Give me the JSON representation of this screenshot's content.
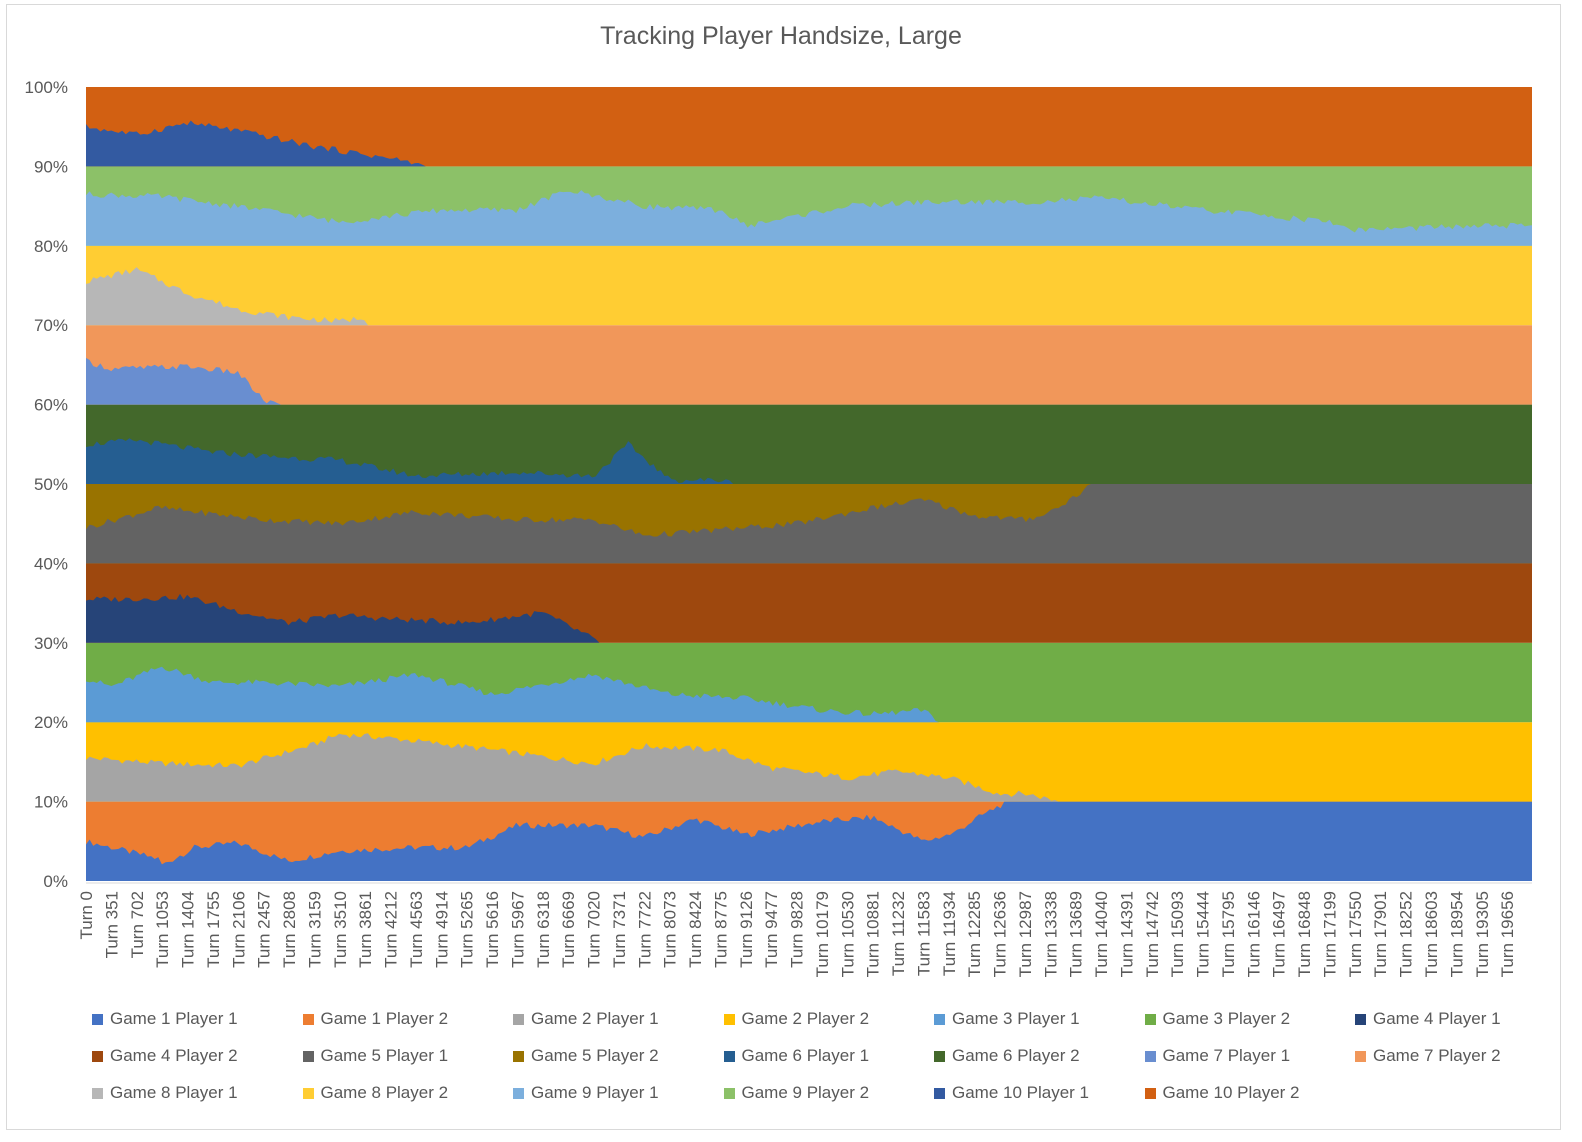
{
  "chart_data": {
    "type": "area",
    "stacked": "percent",
    "title": "Tracking Player Handsize, Large",
    "xlabel": "",
    "ylabel": "",
    "ylim": [
      0,
      100
    ],
    "y_ticks": [
      "0%",
      "10%",
      "20%",
      "30%",
      "40%",
      "50%",
      "60%",
      "70%",
      "80%",
      "90%",
      "100%"
    ],
    "x_ticks": [
      "Turn 0",
      "Turn 351",
      "Turn 702",
      "Turn 1053",
      "Turn 1404",
      "Turn 1755",
      "Turn 2106",
      "Turn 2457",
      "Turn 2808",
      "Turn 3159",
      "Turn 3510",
      "Turn 3861",
      "Turn 4212",
      "Turn 4563",
      "Turn 4914",
      "Turn 5265",
      "Turn 5616",
      "Turn 5967",
      "Turn 6318",
      "Turn 6669",
      "Turn 7020",
      "Turn 7371",
      "Turn 7722",
      "Turn 8073",
      "Turn 8424",
      "Turn 8775",
      "Turn 9126",
      "Turn 9477",
      "Turn 9828",
      "Turn 10179",
      "Turn 10530",
      "Turn 10881",
      "Turn 11232",
      "Turn 11583",
      "Turn 11934",
      "Turn 12285",
      "Turn 12636",
      "Turn 12987",
      "Turn 13338",
      "Turn 13689",
      "Turn 14040",
      "Turn 14391",
      "Turn 14742",
      "Turn 15093",
      "Turn 15444",
      "Turn 15795",
      "Turn 16146",
      "Turn 16497",
      "Turn 16848",
      "Turn 17199",
      "Turn 17550",
      "Turn 17901",
      "Turn 18252",
      "Turn 18603",
      "Turn 18954",
      "Turn 19305",
      "Turn 19656"
    ],
    "x_range": [
      0,
      20000
    ],
    "legend_position": "bottom",
    "grid": false,
    "games": [
      {
        "p1_name": "Game 1 Player 1",
        "p2_name": "Game 1 Player 2",
        "p1_color": "#4472C4",
        "p2_color": "#ED7D31",
        "turns": [
          0,
          1000,
          1053,
          1500,
          2100,
          2800,
          3500,
          4500,
          5265,
          5967,
          7020,
          7722,
          8424,
          9126,
          10179,
          10881,
          11583,
          12000,
          12300,
          12636,
          12850,
          13000,
          20000
        ],
        "p1_share": [
          50,
          28,
          20,
          42,
          48,
          25,
          38,
          42,
          42,
          70,
          70,
          55,
          78,
          58,
          75,
          80,
          50,
          60,
          78,
          95,
          100,
          100,
          100
        ]
      },
      {
        "p1_name": "Game 2 Player 1",
        "p2_name": "Game 2 Player 2",
        "p1_color": "#A5A5A5",
        "p2_color": "#FFC000",
        "turns": [
          0,
          1053,
          2106,
          3159,
          3510,
          4212,
          5616,
          7020,
          7722,
          8775,
          9477,
          10530,
          11232,
          11934,
          12636,
          13000,
          13338,
          13500,
          20000
        ],
        "p1_share": [
          55,
          48,
          45,
          72,
          85,
          80,
          65,
          48,
          70,
          65,
          42,
          30,
          38,
          30,
          10,
          10,
          3,
          0,
          0
        ]
      },
      {
        "p1_name": "Game 3 Player 1",
        "p2_name": "Game 3 Player 2",
        "p1_color": "#5B9BD5",
        "p2_color": "#70AD47",
        "turns": [
          0,
          351,
          1053,
          1755,
          2457,
          3510,
          4563,
          5616,
          7020,
          8073,
          9126,
          10179,
          10881,
          11583,
          11800,
          20000
        ],
        "p1_share": [
          55,
          45,
          70,
          50,
          50,
          45,
          60,
          35,
          60,
          35,
          30,
          15,
          10,
          15,
          0,
          0
        ]
      },
      {
        "p1_name": "Game 4 Player 1",
        "p2_name": "Game 4 Player 2",
        "p1_color": "#264478",
        "p2_color": "#9E480E",
        "turns": [
          0,
          500,
          1404,
          2106,
          2808,
          3510,
          4212,
          5265,
          6318,
          7020,
          7100,
          20000
        ],
        "p1_share": [
          55,
          55,
          58,
          40,
          25,
          35,
          30,
          25,
          38,
          5,
          0,
          0
        ]
      },
      {
        "p1_name": "Game 5 Player 1",
        "p2_name": "Game 5 Player 2",
        "p1_color": "#636363",
        "p2_color": "#997300",
        "turns": [
          0,
          1000,
          2457,
          3510,
          4563,
          5967,
          7020,
          7722,
          9126,
          9828,
          10881,
          11583,
          12285,
          13000,
          13338,
          13689,
          13900,
          20000
        ],
        "p1_share": [
          45,
          70,
          55,
          50,
          65,
          55,
          55,
          35,
          45,
          50,
          70,
          80,
          60,
          55,
          65,
          85,
          100,
          100
        ]
      },
      {
        "p1_name": "Game 6 Player 1",
        "p2_name": "Game 6 Player 2",
        "p1_color": "#255E91",
        "p2_color": "#43682B",
        "turns": [
          0,
          702,
          1755,
          2457,
          3510,
          4563,
          5967,
          7020,
          7500,
          8073,
          8424,
          8775,
          9000,
          20000
        ],
        "p1_share": [
          50,
          55,
          40,
          35,
          30,
          10,
          15,
          10,
          50,
          5,
          5,
          5,
          0,
          0
        ]
      },
      {
        "p1_name": "Game 7 Player 1",
        "p2_name": "Game 7 Player 2",
        "p1_color": "#698ED0",
        "p2_color": "#F1975A",
        "turns": [
          0,
          351,
          1404,
          2106,
          2457,
          2700,
          20000
        ],
        "p1_share": [
          55,
          45,
          48,
          40,
          5,
          0,
          0
        ]
      },
      {
        "p1_name": "Game 8 Player 1",
        "p2_name": "Game 8 Player 2",
        "p1_color": "#B7B7B7",
        "p2_color": "#FFCD33",
        "turns": [
          0,
          702,
          1404,
          2106,
          2808,
          3510,
          3861,
          3900,
          20000
        ],
        "p1_share": [
          55,
          70,
          40,
          20,
          10,
          5,
          10,
          0,
          0
        ]
      },
      {
        "p1_name": "Game 9 Player 1",
        "p2_name": "Game 9 Player 2",
        "p1_color": "#7CAFDD",
        "p2_color": "#8CC168",
        "turns": [
          0,
          1053,
          2457,
          3510,
          4914,
          5967,
          6669,
          7722,
          8775,
          9126,
          10530,
          11583,
          12987,
          14040,
          15444,
          16146,
          17199,
          17550,
          19305,
          20000
        ],
        "p1_share": [
          65,
          62,
          45,
          30,
          45,
          45,
          70,
          50,
          45,
          25,
          50,
          55,
          55,
          60,
          45,
          40,
          30,
          20,
          25,
          25
        ]
      },
      {
        "p1_name": "Game 10 Player 1",
        "p2_name": "Game 10 Player 2",
        "p1_color": "#335AA1",
        "p2_color": "#D26012",
        "turns": [
          0,
          702,
          1404,
          2106,
          3159,
          4212,
          4500,
          4700,
          20000
        ],
        "p1_share": [
          50,
          40,
          55,
          45,
          25,
          10,
          5,
          0,
          0
        ]
      }
    ],
    "legend": [
      {
        "label": "Game 1 Player 1",
        "color": "#4472C4"
      },
      {
        "label": "Game 1 Player 2",
        "color": "#ED7D31"
      },
      {
        "label": "Game 2 Player 1",
        "color": "#A5A5A5"
      },
      {
        "label": "Game 2 Player 2",
        "color": "#FFC000"
      },
      {
        "label": "Game 3 Player 1",
        "color": "#5B9BD5"
      },
      {
        "label": "Game 3 Player 2",
        "color": "#70AD47"
      },
      {
        "label": "Game 4 Player 1",
        "color": "#264478"
      },
      {
        "label": "Game 4 Player 2",
        "color": "#9E480E"
      },
      {
        "label": "Game 5 Player 1",
        "color": "#636363"
      },
      {
        "label": "Game 5 Player 2",
        "color": "#997300"
      },
      {
        "label": "Game 6 Player 1",
        "color": "#255E91"
      },
      {
        "label": "Game 6 Player 2",
        "color": "#43682B"
      },
      {
        "label": "Game 7 Player 1",
        "color": "#698ED0"
      },
      {
        "label": "Game 7 Player 2",
        "color": "#F1975A"
      },
      {
        "label": "Game 8 Player 1",
        "color": "#B7B7B7"
      },
      {
        "label": "Game 8 Player 2",
        "color": "#FFCD33"
      },
      {
        "label": "Game 9 Player 1",
        "color": "#7CAFDD"
      },
      {
        "label": "Game 9 Player 2",
        "color": "#8CC168"
      },
      {
        "label": "Game 10 Player 1",
        "color": "#335AA1"
      },
      {
        "label": "Game 10 Player 2",
        "color": "#D26012"
      }
    ]
  }
}
